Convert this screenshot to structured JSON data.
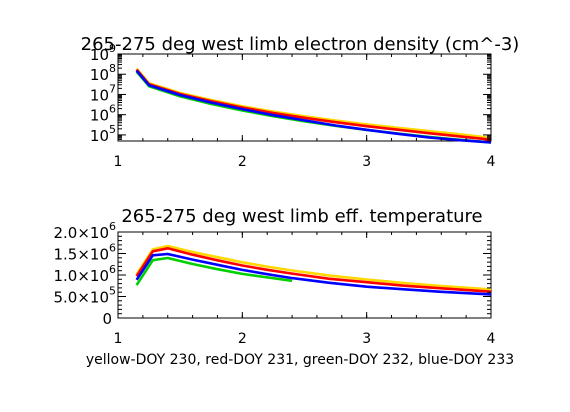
{
  "footer": "yellow-DOY 230, red-DOY 231, green-DOY 232, blue-DOY 233",
  "colors": {
    "yellow": "#ffd800",
    "red": "#ff0000",
    "green": "#00d000",
    "blue": "#0000ff"
  },
  "chart_data": [
    {
      "type": "line",
      "title": "265-275 deg west limb electron density (cm^-3)",
      "xlabel": "",
      "ylabel": "",
      "xlim": [
        1,
        4
      ],
      "ylim": [
        50000,
        1000000000
      ],
      "yscale": "log",
      "grid": false,
      "x_ticks": [
        "1",
        "2",
        "3",
        "4"
      ],
      "y_ticks": [
        {
          "value": 100000,
          "base": "10",
          "exp": "5"
        },
        {
          "value": 1000000,
          "base": "10",
          "exp": "6"
        },
        {
          "value": 10000000,
          "base": "10",
          "exp": "7"
        },
        {
          "value": 100000000,
          "base": "10",
          "exp": "8"
        },
        {
          "value": 1000000000,
          "base": "10",
          "exp": "9"
        }
      ],
      "x": [
        1.15,
        1.25,
        1.5,
        1.75,
        2.0,
        2.25,
        2.5,
        2.75,
        3.0,
        3.25,
        3.5,
        3.75,
        4.0
      ],
      "series": [
        {
          "color": "yellow",
          "values": [
            160000000,
            30000000,
            10000000,
            4500000,
            2200000,
            1200000,
            700000,
            430000,
            280000,
            190000,
            130000,
            90000,
            60000
          ]
        },
        {
          "color": "red",
          "values": [
            160000000,
            30000000,
            10000000,
            4400000,
            2150000,
            1150000,
            660000,
            400000,
            255000,
            170000,
            115000,
            80000,
            55000
          ]
        },
        {
          "color": "green",
          "values": [
            160000000,
            30000000,
            9500000,
            4000000,
            1900000,
            1000000,
            560000,
            330000,
            210000,
            140000,
            95000,
            68000,
            50000
          ]
        },
        {
          "color": "blue",
          "values": [
            160000000,
            30000000,
            9800000,
            4200000,
            2000000,
            1000000,
            550000,
            310000,
            190000,
            120000,
            80000,
            58000,
            45000
          ]
        }
      ]
    },
    {
      "type": "line",
      "title": "265-275 deg west limb eff. temperature",
      "xlabel": "yellow-DOY 230, red-DOY 231, green-DOY 232, blue-DOY 233",
      "ylabel": "",
      "xlim": [
        1,
        4
      ],
      "ylim": [
        0,
        2000000
      ],
      "grid": false,
      "x_ticks": [
        "1",
        "2",
        "3",
        "4"
      ],
      "y_ticks": [
        {
          "value": 0,
          "label": "0"
        },
        {
          "value": 500000,
          "label": "5.0×10",
          "exp": "5"
        },
        {
          "value": 1000000,
          "label": "1.0×10",
          "exp": "6"
        },
        {
          "value": 1500000,
          "label": "1.5×10",
          "exp": "6"
        },
        {
          "value": 2000000,
          "label": "2.0×10",
          "exp": "6"
        }
      ],
      "x": [
        1.15,
        1.28,
        1.4,
        1.6,
        1.8,
        2.0,
        2.2,
        2.4,
        2.7,
        3.0,
        3.3,
        3.6,
        4.0
      ],
      "series": [
        {
          "color": "yellow",
          "values": [
            980000,
            1560000,
            1640000,
            1500000,
            1380000,
            1260000,
            1160000,
            1070000,
            950000,
            860000,
            780000,
            710000,
            630000
          ]
        },
        {
          "color": "red",
          "values": [
            960000,
            1540000,
            1610000,
            1460000,
            1330000,
            1210000,
            1110000,
            1020000,
            900000,
            820000,
            740000,
            680000,
            600000
          ]
        },
        {
          "color": "green",
          "values": [
            800000,
            1380000,
            1430000,
            1290000,
            1170000,
            1060000,
            980000,
            900000,
            null,
            null,
            null,
            null,
            null
          ]
        },
        {
          "color": "blue",
          "values": [
            900000,
            1470000,
            1500000,
            1370000,
            1250000,
            1130000,
            1030000,
            940000,
            830000,
            740000,
            680000,
            620000,
            560000
          ]
        }
      ]
    }
  ]
}
